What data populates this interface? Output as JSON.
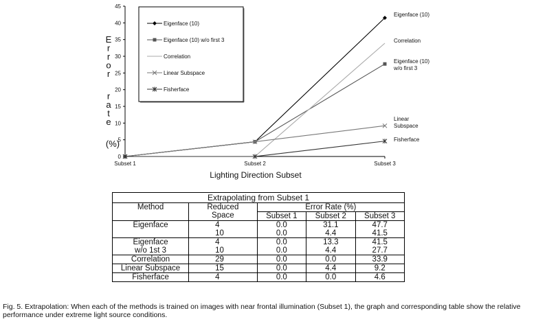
{
  "chart_data": {
    "type": "line",
    "ylabel": "Error rate (%)",
    "xlabel": "Lighting Direction Subset",
    "categories": [
      "Subset 1",
      "Subset 2",
      "Subset 3"
    ],
    "yticks": [
      "0",
      "5",
      "10",
      "15",
      "20",
      "25",
      "30",
      "35",
      "40",
      "45"
    ],
    "ylim": [
      0,
      45
    ],
    "grid": false,
    "legend_position": "top-left",
    "series": [
      {
        "name": "Eigenface (10)",
        "values": [
          0.0,
          4.4,
          41.5
        ],
        "end_label": "Eigenface (10)",
        "marker": "diamond",
        "color": "#000000"
      },
      {
        "name": "Eigenface (10) w/o first 3",
        "values": [
          0.0,
          4.4,
          27.7
        ],
        "end_label": "Eigenface (10) w/o first 3",
        "marker": "square",
        "color": "#555555"
      },
      {
        "name": "Correlation",
        "values": [
          0.0,
          0.0,
          33.9
        ],
        "end_label": "Correlation",
        "marker": "none",
        "color": "#aaaaaa"
      },
      {
        "name": "Linear Subspace",
        "values": [
          0.0,
          4.4,
          9.2
        ],
        "end_label": "Linear Subspace",
        "marker": "x",
        "color": "#777777"
      },
      {
        "name": "Fisherface",
        "values": [
          0.0,
          0.0,
          4.6
        ],
        "end_label": "Fisherface",
        "marker": "star",
        "color": "#333333"
      }
    ]
  },
  "table": {
    "title": "Extrapolating from Subset 1",
    "headers": {
      "method": "Method",
      "reduced_space": "Reduced Space",
      "error_rate": "Error Rate (%)",
      "subset1": "Subset 1",
      "subset2": "Subset 2",
      "subset3": "Subset 3"
    },
    "rows": [
      {
        "method": "Eigenface",
        "lines": [
          [
            "4",
            "0.0",
            "31.1",
            "47.7"
          ],
          [
            "10",
            "0.0",
            "4.4",
            "41.5"
          ]
        ]
      },
      {
        "method": "Eigenface w/o 1st 3",
        "lines": [
          [
            "4",
            "0.0",
            "13.3",
            "41.5"
          ],
          [
            "10",
            "0.0",
            "4.4",
            "27.7"
          ]
        ]
      },
      {
        "method": "Correlation",
        "lines": [
          [
            "29",
            "0.0",
            "0.0",
            "33.9"
          ]
        ]
      },
      {
        "method": "Linear Subspace",
        "lines": [
          [
            "15",
            "0.0",
            "4.4",
            "9.2"
          ]
        ]
      },
      {
        "method": "Fisherface",
        "lines": [
          [
            "4",
            "0.0",
            "0.0",
            "4.6"
          ]
        ]
      }
    ]
  },
  "caption": "Fig. 5. Extrapolation: When each of the methods is trained on images with near frontal illumination (Subset 1), the graph and corresponding table show the relative performance under extreme light source conditions."
}
